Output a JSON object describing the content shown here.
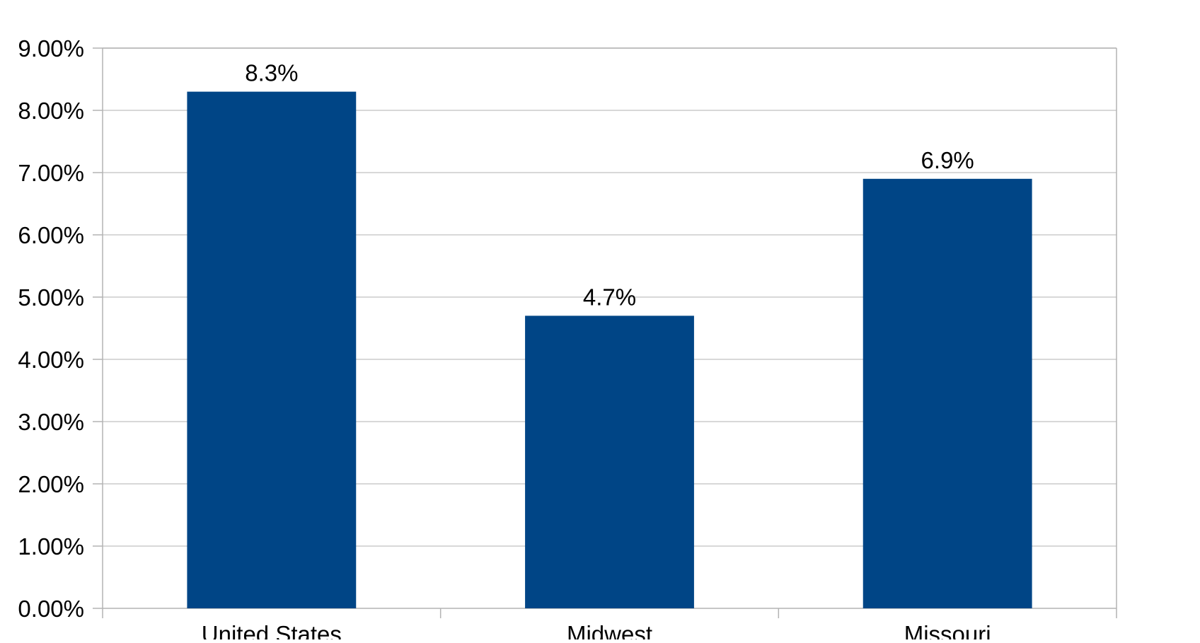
{
  "chart_data": {
    "type": "bar",
    "categories": [
      "United States",
      "Midwest",
      "Missouri"
    ],
    "values": [
      8.3,
      4.7,
      6.9
    ],
    "data_labels": [
      "8.3%",
      "4.7%",
      "6.9%"
    ],
    "ylim": [
      0,
      9
    ],
    "yticks": [
      0,
      1,
      2,
      3,
      4,
      5,
      6,
      7,
      8,
      9
    ],
    "ytick_labels": [
      "0.00%",
      "1.00%",
      "2.00%",
      "3.00%",
      "4.00%",
      "5.00%",
      "6.00%",
      "7.00%",
      "8.00%",
      "9.00%"
    ],
    "grid": true,
    "legend": "none",
    "colors": {
      "bar": "#004586",
      "grid": "#cccccc",
      "axis": "#b3b3b3",
      "text": "#000000"
    }
  }
}
